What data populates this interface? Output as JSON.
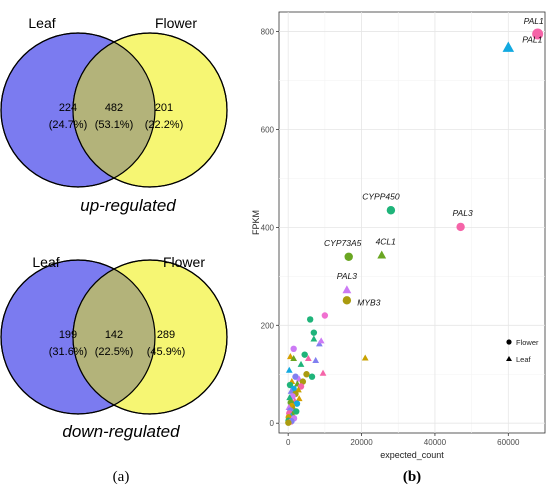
{
  "venn_panels": [
    {
      "left_label": "Leaf",
      "right_label": "Flower",
      "left_only": "224",
      "left_only_pct": "(24.7%)",
      "overlap": "482",
      "overlap_pct": "(53.1%)",
      "right_only": "201",
      "right_only_pct": "(22.2%)",
      "caption": "up-regulated"
    },
    {
      "left_label": "Leaf",
      "right_label": "Flower",
      "left_only": "199",
      "left_only_pct": "(31.6%)",
      "overlap": "142",
      "overlap_pct": "(22.5%)",
      "right_only": "289",
      "right_only_pct": "(45.9%)",
      "caption": "down-regulated"
    }
  ],
  "panel_labels": {
    "a": "(a)",
    "b": "(b)"
  },
  "colors": {
    "leaf_circle": "#7b7bf0",
    "flower_circle": "#f6f673",
    "overlap": "#b3b37a",
    "scatter_panel_bg": "#ffffff",
    "grid": "#ebebeb"
  },
  "chart_data": {
    "type": "scatter",
    "xlabel": "expected_count",
    "ylabel": "FPKM",
    "xlim": [
      -2500,
      70000
    ],
    "ylim": [
      -20,
      840
    ],
    "xticks": [
      0,
      20000,
      40000,
      60000
    ],
    "yticks": [
      0,
      200,
      400,
      600,
      800
    ],
    "grid": true,
    "legend": {
      "position": "right",
      "entries": [
        {
          "label": "Flower",
          "marker": "circle"
        },
        {
          "label": "Leaf",
          "marker": "triangle"
        }
      ]
    },
    "labeled_points": [
      {
        "label": "PAL1",
        "x": 68000,
        "y": 795,
        "shape": "circle",
        "color": "#f564a8"
      },
      {
        "label": "PAL1",
        "x": 60000,
        "y": 767,
        "shape": "triangle",
        "color": "#12a9e0"
      },
      {
        "label": "CYPP450",
        "x": 28000,
        "y": 435,
        "shape": "circle",
        "color": "#1fb47a"
      },
      {
        "label": "PAL3",
        "x": 47000,
        "y": 401,
        "shape": "circle",
        "color": "#f564a8"
      },
      {
        "label": "CYP73A5",
        "x": 16500,
        "y": 340,
        "shape": "circle",
        "color": "#6aa622"
      },
      {
        "label": "4CL1",
        "x": 25500,
        "y": 343,
        "shape": "triangle",
        "color": "#6aa622"
      },
      {
        "label": "PAL3",
        "x": 16000,
        "y": 272,
        "shape": "triangle",
        "color": "#cc7af5"
      },
      {
        "label": "MYB3",
        "x": 16000,
        "y": 251,
        "shape": "circle",
        "color": "#aa9b0f"
      }
    ],
    "other_points": [
      {
        "x": 10000,
        "y": 220,
        "shape": "circle",
        "color": "#f070d0"
      },
      {
        "x": 6000,
        "y": 212,
        "shape": "circle",
        "color": "#1fb47a"
      },
      {
        "x": 7000,
        "y": 185,
        "shape": "circle",
        "color": "#1fb47a"
      },
      {
        "x": 7000,
        "y": 172,
        "shape": "triangle",
        "color": "#1fb47a"
      },
      {
        "x": 8500,
        "y": 162,
        "shape": "triangle",
        "color": "#8080f0"
      },
      {
        "x": 9000,
        "y": 168,
        "shape": "triangle",
        "color": "#cc7af5"
      },
      {
        "x": 1500,
        "y": 152,
        "shape": "circle",
        "color": "#cc7af5"
      },
      {
        "x": 4500,
        "y": 140,
        "shape": "circle",
        "color": "#1fb47a"
      },
      {
        "x": 600,
        "y": 136,
        "shape": "triangle",
        "color": "#d6a000"
      },
      {
        "x": 1500,
        "y": 132,
        "shape": "triangle",
        "color": "#6aa622"
      },
      {
        "x": 21000,
        "y": 133,
        "shape": "triangle",
        "color": "#c8a200"
      },
      {
        "x": 5500,
        "y": 132,
        "shape": "triangle",
        "color": "#f564a8"
      },
      {
        "x": 7500,
        "y": 128,
        "shape": "triangle",
        "color": "#8080f0"
      },
      {
        "x": 3500,
        "y": 120,
        "shape": "triangle",
        "color": "#1fb47a"
      },
      {
        "x": 300,
        "y": 108,
        "shape": "triangle",
        "color": "#12a9e0"
      },
      {
        "x": 9500,
        "y": 102,
        "shape": "triangle",
        "color": "#f564a8"
      },
      {
        "x": 5000,
        "y": 100,
        "shape": "circle",
        "color": "#aa9b0f"
      },
      {
        "x": 6500,
        "y": 95,
        "shape": "circle",
        "color": "#1fb47a"
      },
      {
        "x": 2000,
        "y": 95,
        "shape": "circle",
        "color": "#8080f0"
      },
      {
        "x": 3000,
        "y": 90,
        "shape": "triangle",
        "color": "#cc7af5"
      },
      {
        "x": 4000,
        "y": 85,
        "shape": "circle",
        "color": "#aa9b0f"
      },
      {
        "x": 1000,
        "y": 85,
        "shape": "triangle",
        "color": "#d6a000"
      },
      {
        "x": 2500,
        "y": 80,
        "shape": "triangle",
        "color": "#6aa622"
      },
      {
        "x": 500,
        "y": 78,
        "shape": "circle",
        "color": "#1fb47a"
      },
      {
        "x": 3500,
        "y": 75,
        "shape": "circle",
        "color": "#f564a8"
      },
      {
        "x": 1500,
        "y": 70,
        "shape": "circle",
        "color": "#12a9e0"
      },
      {
        "x": 2800,
        "y": 68,
        "shape": "triangle",
        "color": "#c8a200"
      },
      {
        "x": 800,
        "y": 65,
        "shape": "triangle",
        "color": "#8080f0"
      },
      {
        "x": 2000,
        "y": 60,
        "shape": "circle",
        "color": "#aa9b0f"
      },
      {
        "x": 1200,
        "y": 55,
        "shape": "circle",
        "color": "#cc7af5"
      },
      {
        "x": 400,
        "y": 52,
        "shape": "triangle",
        "color": "#1fb47a"
      },
      {
        "x": 3000,
        "y": 50,
        "shape": "triangle",
        "color": "#d6a000"
      },
      {
        "x": 1800,
        "y": 45,
        "shape": "triangle",
        "color": "#f564a8"
      },
      {
        "x": 700,
        "y": 42,
        "shape": "circle",
        "color": "#6aa622"
      },
      {
        "x": 2400,
        "y": 40,
        "shape": "circle",
        "color": "#12a9e0"
      },
      {
        "x": 1000,
        "y": 35,
        "shape": "circle",
        "color": "#d6a000"
      },
      {
        "x": 200,
        "y": 32,
        "shape": "triangle",
        "color": "#cc7af5"
      },
      {
        "x": 1500,
        "y": 30,
        "shape": "triangle",
        "color": "#aa9b0f"
      },
      {
        "x": 600,
        "y": 26,
        "shape": "circle",
        "color": "#8080f0"
      },
      {
        "x": 2200,
        "y": 24,
        "shape": "circle",
        "color": "#1fb47a"
      },
      {
        "x": 300,
        "y": 20,
        "shape": "circle",
        "color": "#f564a8"
      },
      {
        "x": 1200,
        "y": 18,
        "shape": "triangle",
        "color": "#6aa622"
      },
      {
        "x": 800,
        "y": 14,
        "shape": "triangle",
        "color": "#12a9e0"
      },
      {
        "x": 150,
        "y": 12,
        "shape": "circle",
        "color": "#c8a200"
      },
      {
        "x": 1600,
        "y": 10,
        "shape": "circle",
        "color": "#cc7af5"
      },
      {
        "x": 500,
        "y": 8,
        "shape": "triangle",
        "color": "#d6a000"
      },
      {
        "x": 100,
        "y": 5,
        "shape": "circle",
        "color": "#1fb47a"
      },
      {
        "x": 900,
        "y": 4,
        "shape": "circle",
        "color": "#8080f0"
      },
      {
        "x": 300,
        "y": 2,
        "shape": "triangle",
        "color": "#f564a8"
      },
      {
        "x": 50,
        "y": 1,
        "shape": "circle",
        "color": "#aa9b0f"
      }
    ]
  }
}
